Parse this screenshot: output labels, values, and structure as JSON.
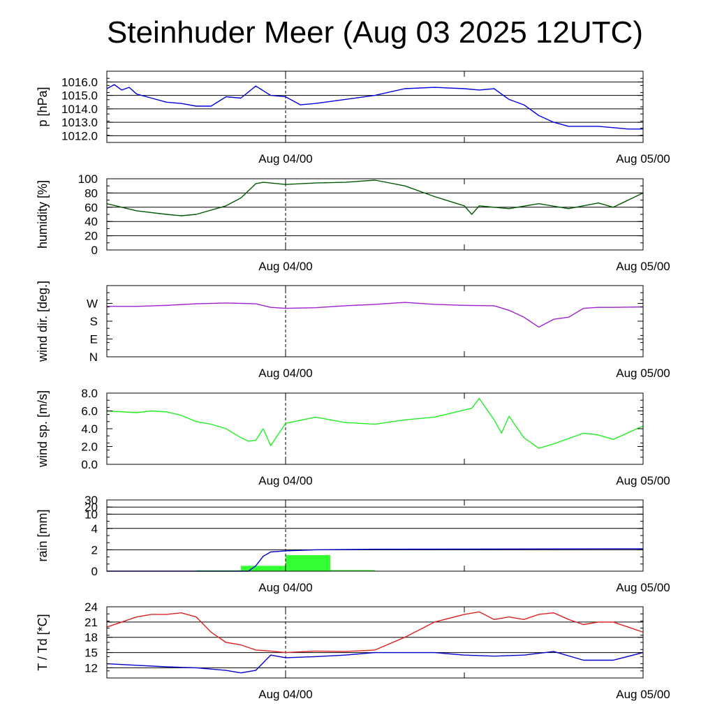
{
  "title": "Steinhuder Meer (Aug 03 2025 12UTC)",
  "x_axis": {
    "start": "2025-08-03 12:00 UTC",
    "end": "2025-08-05 00:00 UTC",
    "tick_labels": [
      {
        "time": "2025-08-04 00:00 UTC",
        "label": "Aug 04/00"
      },
      {
        "time": "2025-08-05 00:00 UTC",
        "label": "Aug 05/00"
      }
    ],
    "minor_tick_times": [
      "2025-08-04 12:00 UTC"
    ],
    "reference_line_time": "2025-08-04 00:00 UTC"
  },
  "colors": {
    "pressure": "#0000dd",
    "humidity": "#005a00",
    "wind_dir": "#a020d0",
    "wind_speed": "#22ee22",
    "rain_bar": "#33ff33",
    "rain_cum": "#0000cc",
    "temperature": "#dd2222",
    "dewpoint": "#0000cc"
  },
  "chart_data": [
    {
      "type": "line",
      "id": "pressure",
      "ylabel": "p [hPa]",
      "ylim": [
        1011.5,
        1016.8
      ],
      "yticks": [
        1012.0,
        1013.0,
        1014.0,
        1015.0,
        1016.0
      ],
      "ytick_labels": [
        "1012.0",
        "1013.0",
        "1014.0",
        "1015.0",
        "1016.0"
      ],
      "grid": true,
      "series": [
        {
          "color_key": "pressure",
          "x": [
            "2025-08-03 12:00",
            "2025-08-03 12:30",
            "2025-08-03 13:00",
            "2025-08-03 13:30",
            "2025-08-03 14:00",
            "2025-08-03 15:00",
            "2025-08-03 16:00",
            "2025-08-03 17:00",
            "2025-08-03 18:00",
            "2025-08-03 19:00",
            "2025-08-03 20:00",
            "2025-08-03 21:00",
            "2025-08-03 22:00",
            "2025-08-03 23:00",
            "2025-08-04 00:00",
            "2025-08-04 01:00",
            "2025-08-04 02:00",
            "2025-08-04 04:00",
            "2025-08-04 06:00",
            "2025-08-04 08:00",
            "2025-08-04 10:00",
            "2025-08-04 12:00",
            "2025-08-04 13:00",
            "2025-08-04 14:00",
            "2025-08-04 15:00",
            "2025-08-04 16:00",
            "2025-08-04 17:00",
            "2025-08-04 18:00",
            "2025-08-04 19:00",
            "2025-08-04 20:00",
            "2025-08-04 21:00",
            "2025-08-04 22:00",
            "2025-08-04 23:00",
            "2025-08-05 00:00"
          ],
          "y": [
            1015.5,
            1015.8,
            1015.4,
            1015.6,
            1015.1,
            1014.8,
            1014.5,
            1014.4,
            1014.2,
            1014.2,
            1014.9,
            1014.8,
            1015.7,
            1015.0,
            1014.9,
            1014.3,
            1014.4,
            1014.7,
            1015.0,
            1015.5,
            1015.6,
            1015.5,
            1015.4,
            1015.5,
            1014.7,
            1014.3,
            1013.5,
            1013.0,
            1012.7,
            1012.7,
            1012.7,
            1012.6,
            1012.5,
            1012.5
          ]
        }
      ]
    },
    {
      "type": "line",
      "id": "humidity",
      "ylabel": "humidity [%]",
      "ylim": [
        0,
        100
      ],
      "yticks": [
        0,
        20,
        40,
        60,
        80,
        100
      ],
      "ytick_labels": [
        "0",
        "20",
        "40",
        "60",
        "80",
        "100"
      ],
      "grid": true,
      "series": [
        {
          "color_key": "humidity",
          "x": [
            "2025-08-03 12:00",
            "2025-08-03 14:00",
            "2025-08-03 16:00",
            "2025-08-03 17:00",
            "2025-08-03 18:00",
            "2025-08-03 20:00",
            "2025-08-03 21:00",
            "2025-08-03 22:00",
            "2025-08-03 22:30",
            "2025-08-03 23:00",
            "2025-08-04 00:00",
            "2025-08-04 02:00",
            "2025-08-04 04:00",
            "2025-08-04 06:00",
            "2025-08-04 08:00",
            "2025-08-04 10:00",
            "2025-08-04 12:00",
            "2025-08-04 12:30",
            "2025-08-04 13:00",
            "2025-08-04 15:00",
            "2025-08-04 17:00",
            "2025-08-04 19:00",
            "2025-08-04 21:00",
            "2025-08-04 22:00",
            "2025-08-05 00:00"
          ],
          "y": [
            65,
            55,
            50,
            48,
            50,
            62,
            73,
            93,
            95,
            94,
            92,
            94,
            95,
            98,
            90,
            75,
            62,
            50,
            62,
            58,
            65,
            58,
            66,
            60,
            80
          ]
        }
      ]
    },
    {
      "type": "line",
      "id": "wind_dir",
      "ylabel": "wind dir. [deg.]",
      "ylim": [
        0,
        360
      ],
      "yticks": [
        0,
        90,
        180,
        270
      ],
      "ytick_labels": [
        "N",
        "E",
        "S",
        "W"
      ],
      "grid": false,
      "series": [
        {
          "color_key": "wind_dir",
          "x": [
            "2025-08-03 12:00",
            "2025-08-03 14:00",
            "2025-08-03 16:00",
            "2025-08-03 18:00",
            "2025-08-03 20:00",
            "2025-08-03 22:00",
            "2025-08-03 23:00",
            "2025-08-04 00:00",
            "2025-08-04 02:00",
            "2025-08-04 04:00",
            "2025-08-04 06:00",
            "2025-08-04 08:00",
            "2025-08-04 10:00",
            "2025-08-04 12:00",
            "2025-08-04 14:00",
            "2025-08-04 15:00",
            "2025-08-04 16:00",
            "2025-08-04 17:00",
            "2025-08-04 18:00",
            "2025-08-04 19:00",
            "2025-08-04 20:00",
            "2025-08-04 21:00",
            "2025-08-04 22:00",
            "2025-08-05 00:00"
          ],
          "y": [
            255,
            255,
            260,
            268,
            272,
            268,
            250,
            245,
            248,
            258,
            265,
            275,
            265,
            260,
            258,
            235,
            200,
            150,
            190,
            200,
            245,
            250,
            250,
            252
          ]
        }
      ]
    },
    {
      "type": "line",
      "id": "wind_speed",
      "ylabel": "wind sp. [m/s]",
      "ylim": [
        0,
        8
      ],
      "yticks": [
        0,
        2,
        4,
        6,
        8
      ],
      "ytick_labels": [
        "0.0",
        "2.0",
        "4.0",
        "6.0",
        "8.0"
      ],
      "grid": false,
      "series": [
        {
          "color_key": "wind_speed",
          "x": [
            "2025-08-03 12:00",
            "2025-08-03 14:00",
            "2025-08-03 15:00",
            "2025-08-03 16:00",
            "2025-08-03 17:00",
            "2025-08-03 18:00",
            "2025-08-03 19:00",
            "2025-08-03 20:00",
            "2025-08-03 21:00",
            "2025-08-03 21:30",
            "2025-08-03 22:00",
            "2025-08-03 22:30",
            "2025-08-03 23:00",
            "2025-08-04 00:00",
            "2025-08-04 02:00",
            "2025-08-04 04:00",
            "2025-08-04 06:00",
            "2025-08-04 08:00",
            "2025-08-04 10:00",
            "2025-08-04 12:00",
            "2025-08-04 12:30",
            "2025-08-04 13:00",
            "2025-08-04 14:00",
            "2025-08-04 14:30",
            "2025-08-04 15:00",
            "2025-08-04 16:00",
            "2025-08-04 17:00",
            "2025-08-04 18:00",
            "2025-08-04 20:00",
            "2025-08-04 21:00",
            "2025-08-04 22:00",
            "2025-08-05 00:00"
          ],
          "y": [
            6.0,
            5.8,
            6.0,
            5.9,
            5.5,
            4.8,
            4.5,
            4.0,
            3.0,
            2.6,
            2.7,
            4.0,
            2.1,
            4.6,
            5.3,
            4.7,
            4.5,
            5.0,
            5.3,
            6.1,
            6.3,
            7.4,
            5.0,
            3.5,
            5.4,
            3.0,
            1.8,
            2.3,
            3.5,
            3.3,
            2.8,
            4.3
          ]
        }
      ]
    },
    {
      "type": "bar",
      "id": "rain",
      "ylabel": "rain [mm]",
      "ylim": [
        0,
        30
      ],
      "yticks": [
        0,
        2,
        4,
        10,
        20,
        30
      ],
      "ytick_labels": [
        "0",
        "2",
        "4",
        "10",
        "20",
        "30"
      ],
      "grid": true,
      "bars": {
        "color_key": "rain_bar",
        "intervals": [
          {
            "start": "2025-08-03 18:00",
            "end": "2025-08-03 21:00",
            "value": 0.0
          },
          {
            "start": "2025-08-03 21:00",
            "end": "2025-08-04 00:00",
            "value": 0.5
          },
          {
            "start": "2025-08-04 00:00",
            "end": "2025-08-04 03:00",
            "value": 1.5
          },
          {
            "start": "2025-08-04 03:00",
            "end": "2025-08-04 06:00",
            "value": 0.1
          }
        ]
      },
      "series": [
        {
          "color_key": "rain_cum",
          "x": [
            "2025-08-03 12:00",
            "2025-08-03 20:00",
            "2025-08-03 21:30",
            "2025-08-03 22:00",
            "2025-08-03 22:30",
            "2025-08-03 23:00",
            "2025-08-04 00:00",
            "2025-08-04 01:00",
            "2025-08-04 02:00",
            "2025-08-04 06:00",
            "2025-08-05 00:00"
          ],
          "y": [
            0,
            0,
            0,
            0.5,
            1.4,
            1.8,
            1.9,
            1.95,
            2.0,
            2.05,
            2.1
          ]
        }
      ]
    },
    {
      "type": "line",
      "id": "temperature",
      "ylabel": "T / Td [*C]",
      "ylim": [
        10,
        24
      ],
      "yticks": [
        12,
        15,
        18,
        21,
        24
      ],
      "ytick_labels": [
        "12",
        "15",
        "18",
        "21",
        "24"
      ],
      "grid": true,
      "series": [
        {
          "color_key": "temperature",
          "x": [
            "2025-08-03 12:00",
            "2025-08-03 13:00",
            "2025-08-03 14:00",
            "2025-08-03 15:00",
            "2025-08-03 16:00",
            "2025-08-03 17:00",
            "2025-08-03 18:00",
            "2025-08-03 19:00",
            "2025-08-03 20:00",
            "2025-08-03 21:00",
            "2025-08-03 22:00",
            "2025-08-03 23:00",
            "2025-08-04 00:00",
            "2025-08-04 02:00",
            "2025-08-04 04:00",
            "2025-08-04 06:00",
            "2025-08-04 08:00",
            "2025-08-04 10:00",
            "2025-08-04 12:00",
            "2025-08-04 13:00",
            "2025-08-04 14:00",
            "2025-08-04 15:00",
            "2025-08-04 16:00",
            "2025-08-04 17:00",
            "2025-08-04 18:00",
            "2025-08-04 19:00",
            "2025-08-04 20:00",
            "2025-08-04 21:00",
            "2025-08-04 22:00",
            "2025-08-04 23:00",
            "2025-08-05 00:00"
          ],
          "y": [
            20,
            21,
            22,
            22.5,
            22.5,
            22.8,
            22.0,
            19.0,
            17.0,
            16.5,
            15.5,
            15.3,
            15.0,
            15.3,
            15.2,
            15.5,
            18.0,
            21.0,
            22.5,
            23.0,
            21.5,
            22.0,
            21.5,
            22.5,
            22.8,
            21.5,
            20.5,
            21.0,
            21.0,
            20.0,
            19.0
          ]
        },
        {
          "color_key": "dewpoint",
          "x": [
            "2025-08-03 12:00",
            "2025-08-03 14:00",
            "2025-08-03 16:00",
            "2025-08-03 18:00",
            "2025-08-03 20:00",
            "2025-08-03 21:00",
            "2025-08-03 22:00",
            "2025-08-03 23:00",
            "2025-08-04 00:00",
            "2025-08-04 02:00",
            "2025-08-04 04:00",
            "2025-08-04 06:00",
            "2025-08-04 08:00",
            "2025-08-04 10:00",
            "2025-08-04 12:00",
            "2025-08-04 14:00",
            "2025-08-04 16:00",
            "2025-08-04 18:00",
            "2025-08-04 20:00",
            "2025-08-04 22:00",
            "2025-08-05 00:00"
          ],
          "y": [
            12.8,
            12.5,
            12.2,
            12.0,
            11.5,
            11.0,
            11.5,
            14.5,
            14.0,
            14.2,
            14.5,
            15.0,
            15.0,
            15.0,
            14.5,
            14.3,
            14.5,
            15.2,
            13.5,
            13.5,
            15.0
          ]
        }
      ]
    }
  ]
}
